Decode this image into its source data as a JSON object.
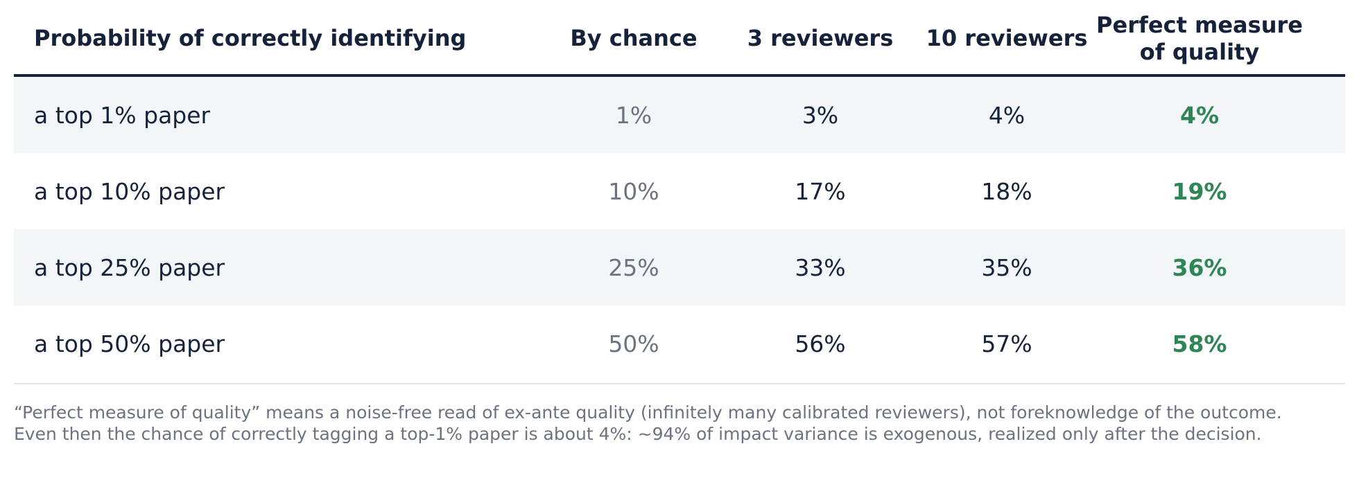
{
  "chart_data": {
    "type": "table",
    "columns": [
      "Probability of correctly identifying",
      "By chance",
      "3 reviewers",
      "10 reviewers",
      "Perfect measure of quality"
    ],
    "rows": [
      {
        "label": "a top 1% paper",
        "by_chance": "1%",
        "reviewers_3": "3%",
        "reviewers_10": "4%",
        "perfect": "4%"
      },
      {
        "label": "a top 10% paper",
        "by_chance": "10%",
        "reviewers_3": "17%",
        "reviewers_10": "18%",
        "perfect": "19%"
      },
      {
        "label": "a top 25% paper",
        "by_chance": "25%",
        "reviewers_3": "33%",
        "reviewers_10": "35%",
        "perfect": "36%"
      },
      {
        "label": "a top 50% paper",
        "by_chance": "50%",
        "reviewers_3": "56%",
        "reviewers_10": "57%",
        "perfect": "58%"
      }
    ],
    "footnote": [
      "“Perfect measure of quality” means a noise-free read of ex-ante quality (infinitely many calibrated reviewers), not foreknowledge of the outcome.",
      "Even then the chance of correctly tagging a top-1% paper is about 4%: ~94% of impact variance is exogenous, realized only after the decision."
    ]
  },
  "colors": {
    "text": "#16213a",
    "muted": "#6b7280",
    "highlight": "#2e8555",
    "row_shade": "#f2f6f9"
  }
}
